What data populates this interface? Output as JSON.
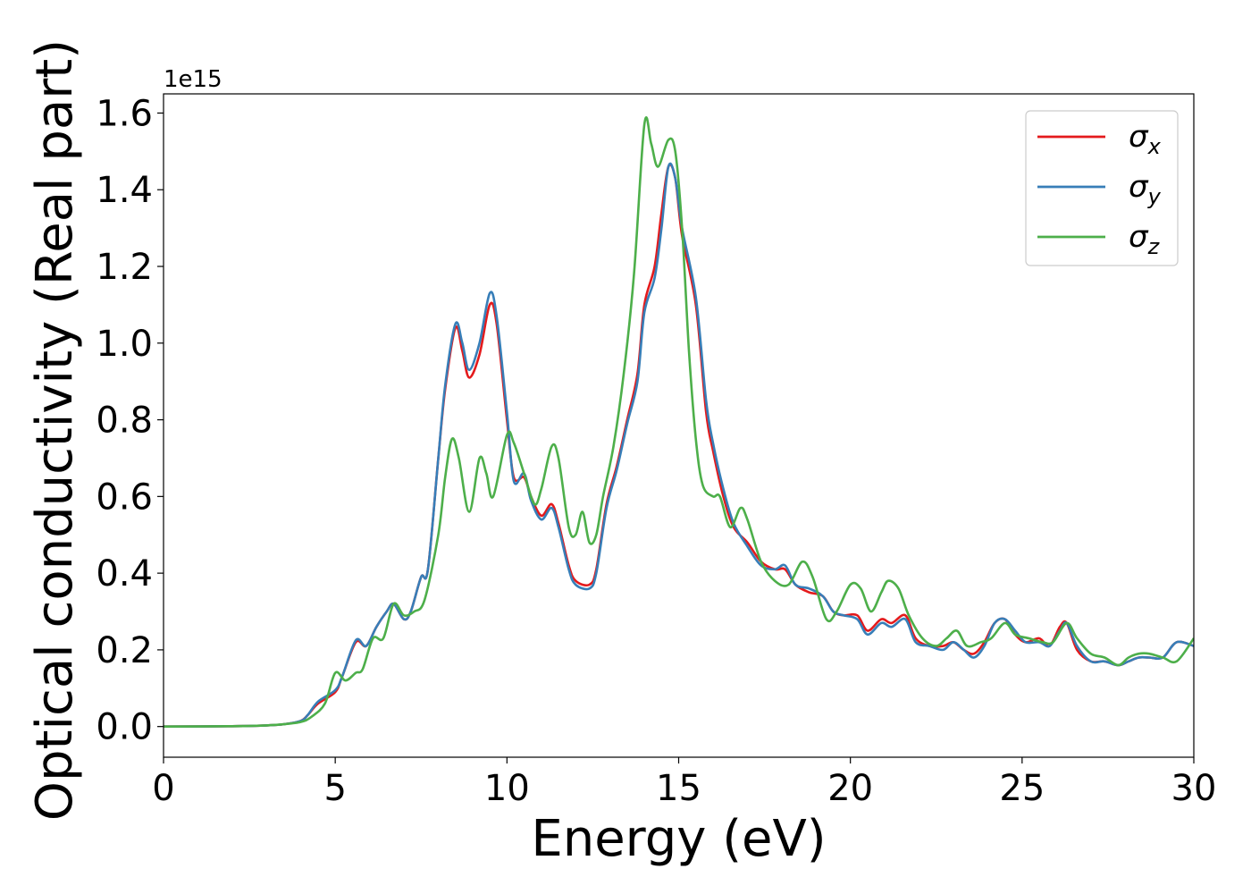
{
  "chart_data": {
    "type": "line",
    "xlabel": "Energy (eV)",
    "ylabel": "Optical conductivity (Real part)",
    "y_offset_label": "1e15",
    "xlim": [
      0,
      30
    ],
    "ylim": [
      -0.08,
      1.65
    ],
    "x_ticks": [
      0,
      5,
      10,
      15,
      20,
      25,
      30
    ],
    "x_tick_labels": [
      "0",
      "5",
      "10",
      "15",
      "20",
      "25",
      "30"
    ],
    "y_ticks": [
      0.0,
      0.2,
      0.4,
      0.6,
      0.8,
      1.0,
      1.2,
      1.4,
      1.6
    ],
    "y_tick_labels": [
      "0.0",
      "0.2",
      "0.4",
      "0.6",
      "0.8",
      "1.0",
      "1.2",
      "1.4",
      "1.6"
    ],
    "grid": false,
    "legend_position": "top-right",
    "series": [
      {
        "name": "σ",
        "name_sub": "x",
        "color": "#e41a1c",
        "points": [
          [
            0,
            0
          ],
          [
            2,
            0.001
          ],
          [
            3,
            0.003
          ],
          [
            3.5,
            0.006
          ],
          [
            4,
            0.015
          ],
          [
            4.2,
            0.03
          ],
          [
            4.5,
            0.06
          ],
          [
            5,
            0.09
          ],
          [
            5.2,
            0.13
          ],
          [
            5.6,
            0.22
          ],
          [
            5.9,
            0.21
          ],
          [
            6.2,
            0.26
          ],
          [
            6.5,
            0.3
          ],
          [
            6.7,
            0.32
          ],
          [
            7,
            0.28
          ],
          [
            7.2,
            0.3
          ],
          [
            7.5,
            0.39
          ],
          [
            7.7,
            0.41
          ],
          [
            8,
            0.7
          ],
          [
            8.2,
            0.88
          ],
          [
            8.5,
            1.04
          ],
          [
            8.7,
            0.98
          ],
          [
            8.9,
            0.91
          ],
          [
            9.2,
            0.97
          ],
          [
            9.5,
            1.1
          ],
          [
            9.7,
            1.05
          ],
          [
            10,
            0.8
          ],
          [
            10.2,
            0.65
          ],
          [
            10.5,
            0.65
          ],
          [
            10.7,
            0.6
          ],
          [
            11,
            0.55
          ],
          [
            11.3,
            0.58
          ],
          [
            11.5,
            0.53
          ],
          [
            11.8,
            0.42
          ],
          [
            12,
            0.38
          ],
          [
            12.4,
            0.37
          ],
          [
            12.6,
            0.41
          ],
          [
            12.9,
            0.58
          ],
          [
            13.2,
            0.68
          ],
          [
            13.5,
            0.8
          ],
          [
            13.8,
            0.92
          ],
          [
            14,
            1.1
          ],
          [
            14.3,
            1.2
          ],
          [
            14.5,
            1.34
          ],
          [
            14.7,
            1.46
          ],
          [
            14.9,
            1.43
          ],
          [
            15.1,
            1.28
          ],
          [
            15.5,
            1.1
          ],
          [
            15.8,
            0.82
          ],
          [
            16,
            0.72
          ],
          [
            16.3,
            0.6
          ],
          [
            16.6,
            0.52
          ],
          [
            17,
            0.48
          ],
          [
            17.4,
            0.43
          ],
          [
            17.8,
            0.41
          ],
          [
            18.1,
            0.41
          ],
          [
            18.4,
            0.37
          ],
          [
            18.8,
            0.35
          ],
          [
            19.2,
            0.34
          ],
          [
            19.5,
            0.3
          ],
          [
            19.8,
            0.29
          ],
          [
            20.2,
            0.29
          ],
          [
            20.5,
            0.25
          ],
          [
            20.9,
            0.28
          ],
          [
            21.2,
            0.27
          ],
          [
            21.6,
            0.29
          ],
          [
            21.9,
            0.23
          ],
          [
            22.3,
            0.21
          ],
          [
            22.7,
            0.21
          ],
          [
            23,
            0.22
          ],
          [
            23.3,
            0.2
          ],
          [
            23.6,
            0.19
          ],
          [
            23.9,
            0.22
          ],
          [
            24.2,
            0.27
          ],
          [
            24.5,
            0.28
          ],
          [
            24.8,
            0.24
          ],
          [
            25.1,
            0.22
          ],
          [
            25.5,
            0.23
          ],
          [
            25.8,
            0.21
          ],
          [
            26.1,
            0.26
          ],
          [
            26.3,
            0.27
          ],
          [
            26.6,
            0.2
          ],
          [
            27,
            0.17
          ],
          [
            27.4,
            0.17
          ],
          [
            27.8,
            0.16
          ],
          [
            28.1,
            0.17
          ],
          [
            28.4,
            0.18
          ],
          [
            28.7,
            0.18
          ],
          [
            29.1,
            0.18
          ],
          [
            29.5,
            0.22
          ],
          [
            30,
            0.21
          ]
        ]
      },
      {
        "name": "σ",
        "name_sub": "y",
        "color": "#377eb8",
        "points": [
          [
            0,
            0
          ],
          [
            2,
            0.001
          ],
          [
            3,
            0.003
          ],
          [
            3.5,
            0.006
          ],
          [
            4,
            0.015
          ],
          [
            4.2,
            0.03
          ],
          [
            4.5,
            0.065
          ],
          [
            5,
            0.095
          ],
          [
            5.2,
            0.13
          ],
          [
            5.6,
            0.225
          ],
          [
            5.9,
            0.21
          ],
          [
            6.2,
            0.26
          ],
          [
            6.5,
            0.3
          ],
          [
            6.7,
            0.32
          ],
          [
            7,
            0.28
          ],
          [
            7.2,
            0.3
          ],
          [
            7.5,
            0.39
          ],
          [
            7.7,
            0.41
          ],
          [
            8,
            0.7
          ],
          [
            8.2,
            0.89
          ],
          [
            8.5,
            1.05
          ],
          [
            8.7,
            1.0
          ],
          [
            8.9,
            0.93
          ],
          [
            9.2,
            1.0
          ],
          [
            9.5,
            1.13
          ],
          [
            9.7,
            1.07
          ],
          [
            10,
            0.82
          ],
          [
            10.2,
            0.64
          ],
          [
            10.5,
            0.66
          ],
          [
            10.7,
            0.59
          ],
          [
            11,
            0.54
          ],
          [
            11.3,
            0.57
          ],
          [
            11.5,
            0.52
          ],
          [
            11.8,
            0.41
          ],
          [
            12,
            0.37
          ],
          [
            12.4,
            0.36
          ],
          [
            12.6,
            0.4
          ],
          [
            12.9,
            0.57
          ],
          [
            13.2,
            0.67
          ],
          [
            13.5,
            0.79
          ],
          [
            13.8,
            0.9
          ],
          [
            14,
            1.08
          ],
          [
            14.3,
            1.17
          ],
          [
            14.5,
            1.3
          ],
          [
            14.7,
            1.46
          ],
          [
            14.9,
            1.43
          ],
          [
            15.1,
            1.3
          ],
          [
            15.5,
            1.12
          ],
          [
            15.8,
            0.85
          ],
          [
            16,
            0.74
          ],
          [
            16.3,
            0.62
          ],
          [
            16.6,
            0.53
          ],
          [
            17,
            0.47
          ],
          [
            17.4,
            0.42
          ],
          [
            17.8,
            0.41
          ],
          [
            18.1,
            0.42
          ],
          [
            18.4,
            0.37
          ],
          [
            18.8,
            0.36
          ],
          [
            19.2,
            0.34
          ],
          [
            19.5,
            0.3
          ],
          [
            19.8,
            0.29
          ],
          [
            20.2,
            0.28
          ],
          [
            20.5,
            0.24
          ],
          [
            20.9,
            0.27
          ],
          [
            21.2,
            0.26
          ],
          [
            21.6,
            0.28
          ],
          [
            21.9,
            0.22
          ],
          [
            22.3,
            0.21
          ],
          [
            22.7,
            0.2
          ],
          [
            23,
            0.22
          ],
          [
            23.3,
            0.2
          ],
          [
            23.6,
            0.18
          ],
          [
            23.9,
            0.21
          ],
          [
            24.2,
            0.27
          ],
          [
            24.5,
            0.28
          ],
          [
            24.8,
            0.25
          ],
          [
            25.1,
            0.22
          ],
          [
            25.5,
            0.22
          ],
          [
            25.8,
            0.21
          ],
          [
            26.1,
            0.25
          ],
          [
            26.3,
            0.27
          ],
          [
            26.6,
            0.21
          ],
          [
            27,
            0.17
          ],
          [
            27.4,
            0.17
          ],
          [
            27.8,
            0.16
          ],
          [
            28.1,
            0.17
          ],
          [
            28.4,
            0.18
          ],
          [
            28.7,
            0.18
          ],
          [
            29.1,
            0.18
          ],
          [
            29.5,
            0.22
          ],
          [
            30,
            0.21
          ]
        ]
      },
      {
        "name": "σ",
        "name_sub": "z",
        "color": "#4daf4a",
        "points": [
          [
            0,
            0
          ],
          [
            2,
            0.001
          ],
          [
            3,
            0.003
          ],
          [
            3.5,
            0.006
          ],
          [
            4,
            0.012
          ],
          [
            4.3,
            0.025
          ],
          [
            4.7,
            0.06
          ],
          [
            5,
            0.14
          ],
          [
            5.3,
            0.12
          ],
          [
            5.6,
            0.14
          ],
          [
            5.8,
            0.15
          ],
          [
            6.1,
            0.23
          ],
          [
            6.4,
            0.23
          ],
          [
            6.7,
            0.32
          ],
          [
            7,
            0.29
          ],
          [
            7.3,
            0.3
          ],
          [
            7.6,
            0.33
          ],
          [
            8,
            0.5
          ],
          [
            8.2,
            0.65
          ],
          [
            8.4,
            0.75
          ],
          [
            8.6,
            0.7
          ],
          [
            8.9,
            0.56
          ],
          [
            9.2,
            0.7
          ],
          [
            9.4,
            0.66
          ],
          [
            9.6,
            0.6
          ],
          [
            10,
            0.76
          ],
          [
            10.2,
            0.74
          ],
          [
            10.5,
            0.66
          ],
          [
            10.8,
            0.58
          ],
          [
            11,
            0.62
          ],
          [
            11.3,
            0.73
          ],
          [
            11.5,
            0.7
          ],
          [
            11.8,
            0.52
          ],
          [
            12,
            0.5
          ],
          [
            12.2,
            0.56
          ],
          [
            12.4,
            0.48
          ],
          [
            12.6,
            0.5
          ],
          [
            12.8,
            0.6
          ],
          [
            13.1,
            0.73
          ],
          [
            13.4,
            0.92
          ],
          [
            13.7,
            1.18
          ],
          [
            14,
            1.57
          ],
          [
            14.2,
            1.52
          ],
          [
            14.4,
            1.46
          ],
          [
            14.7,
            1.53
          ],
          [
            14.9,
            1.5
          ],
          [
            15.1,
            1.3
          ],
          [
            15.3,
            0.98
          ],
          [
            15.5,
            0.75
          ],
          [
            15.7,
            0.63
          ],
          [
            16,
            0.6
          ],
          [
            16.2,
            0.6
          ],
          [
            16.5,
            0.52
          ],
          [
            16.8,
            0.57
          ],
          [
            17,
            0.54
          ],
          [
            17.4,
            0.43
          ],
          [
            17.8,
            0.38
          ],
          [
            18.2,
            0.37
          ],
          [
            18.6,
            0.43
          ],
          [
            18.9,
            0.39
          ],
          [
            19.3,
            0.28
          ],
          [
            19.6,
            0.3
          ],
          [
            20,
            0.37
          ],
          [
            20.3,
            0.36
          ],
          [
            20.6,
            0.3
          ],
          [
            20.9,
            0.35
          ],
          [
            21.1,
            0.38
          ],
          [
            21.4,
            0.36
          ],
          [
            21.7,
            0.29
          ],
          [
            22.1,
            0.23
          ],
          [
            22.5,
            0.21
          ],
          [
            22.8,
            0.23
          ],
          [
            23.1,
            0.25
          ],
          [
            23.4,
            0.21
          ],
          [
            23.8,
            0.22
          ],
          [
            24.1,
            0.23
          ],
          [
            24.5,
            0.27
          ],
          [
            24.8,
            0.24
          ],
          [
            25.2,
            0.23
          ],
          [
            25.6,
            0.22
          ],
          [
            25.9,
            0.22
          ],
          [
            26.3,
            0.27
          ],
          [
            26.6,
            0.23
          ],
          [
            27,
            0.19
          ],
          [
            27.4,
            0.18
          ],
          [
            27.8,
            0.16
          ],
          [
            28.1,
            0.18
          ],
          [
            28.4,
            0.19
          ],
          [
            28.7,
            0.19
          ],
          [
            29.1,
            0.18
          ],
          [
            29.5,
            0.17
          ],
          [
            30,
            0.23
          ]
        ]
      }
    ]
  }
}
